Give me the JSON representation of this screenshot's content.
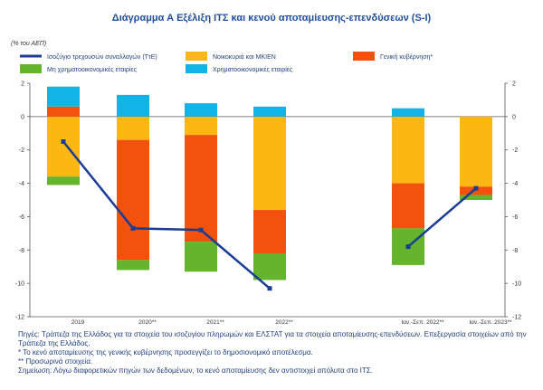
{
  "chart_data": {
    "type": "bar",
    "title": "Διάγραμμα Α Εξέλιξη ΙΤΣ και κενού αποταμίευσης-επενδύσεων (S-I)",
    "unit_label": "(% του ΑΕΠ)",
    "categories": [
      "2019",
      "2020**",
      "2021**",
      "2022**",
      "Ιαν.-Σεπ. 2022**",
      "Ιαν.-Σεπ. 2023**"
    ],
    "ylim": [
      -12,
      2
    ],
    "yticks": [
      "2",
      "0",
      "-2",
      "-4",
      "-6",
      "-8",
      "-10",
      "-12"
    ],
    "series": [
      {
        "name": "Νοικοκυριά και ΜΚΙΕΝ",
        "color": "#fcb712",
        "values": [
          -3.6,
          -1.4,
          -1.1,
          -5.6,
          -4.0,
          -4.2
        ]
      },
      {
        "name": "Γενική κυβέρνηση*",
        "color": "#f3520d",
        "values": [
          0.6,
          -7.2,
          -6.4,
          -2.6,
          -2.7,
          -0.5
        ]
      },
      {
        "name": "Μη χρηματοοικονομικές εταιρίες",
        "color": "#64b42d",
        "values": [
          -0.5,
          -0.6,
          -1.8,
          -1.6,
          -2.2,
          -0.3
        ]
      },
      {
        "name": "Χρηματοοικονομικές εταιρίες",
        "color": "#12b4e8",
        "values": [
          1.2,
          1.3,
          0.8,
          0.6,
          0.5,
          0.0
        ]
      }
    ],
    "line": {
      "name": "Ισοζύγιο τρεχουσών συναλλαγών (ΤτΕ)",
      "color": "#1a3c94",
      "values": [
        -1.5,
        -6.7,
        -6.8,
        -10.3,
        -7.8,
        -4.3
      ]
    },
    "grid": false,
    "legend_position": "top"
  },
  "notes": {
    "source": "Πηγές: Τράπεζα της Ελλάδος για τα στοιχεία του ισοζυγίου πληρωμών και ΕΛΣΤΑΤ για τα στοιχεία αποταμίευσης-επενδύσεων. Επεξεργασία στοιχείων από την Τράπεζα της Ελλάδος.",
    "note1": "* Το κενό αποταμίευσης της γενικής κυβέρνησης προσεγγίζει το δημοσιονομικό αποτέλεσμα.",
    "note2": "** Προσωρινά στοιχεία.",
    "note3": "Σημείωση: Λόγω διαφορετικών πηγών των δεδομένων, το κενό αποταμίευσης δεν αντιστοιχεί απόλυτα στο ΙΤΣ."
  }
}
